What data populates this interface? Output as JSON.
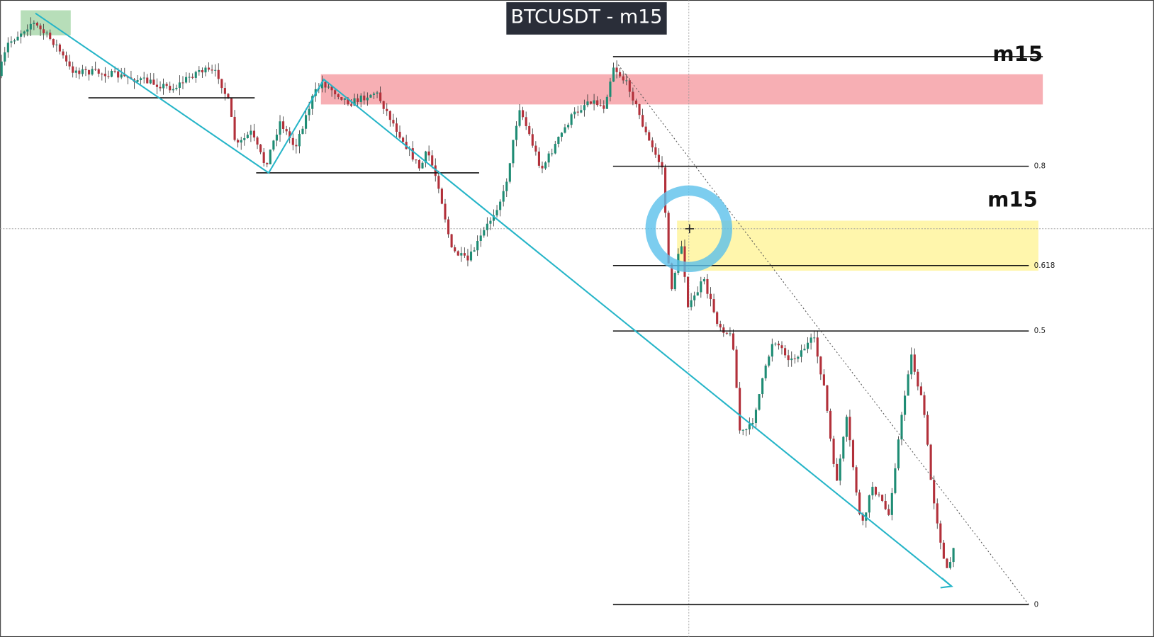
{
  "header": {
    "title": "BTCUSDT - m15"
  },
  "zones": {
    "top_label": "m15",
    "middle_label": "m15"
  },
  "fib_levels": [
    {
      "label": "0.8"
    },
    {
      "label": "0.618"
    },
    {
      "label": "0.5"
    },
    {
      "label": "0"
    }
  ]
}
